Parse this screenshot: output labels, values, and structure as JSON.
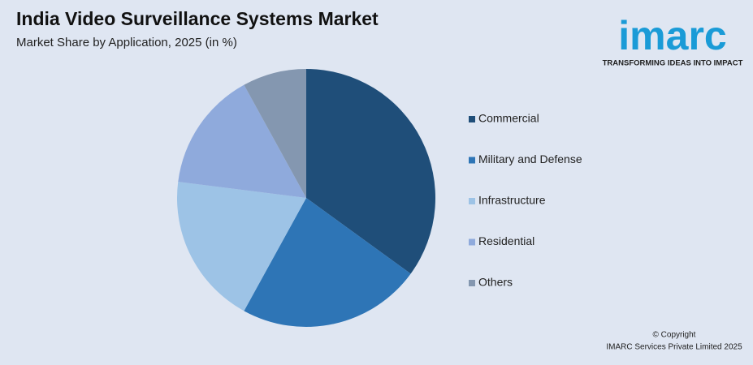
{
  "chart_data": {
    "type": "pie",
    "title": "India Video Surveillance Systems Market",
    "subtitle": "Market Share by Application, 2025 (in %)",
    "categories": [
      "Commercial",
      "Military and Defense",
      "Infrastructure",
      "Residential",
      "Others"
    ],
    "values": [
      35,
      23,
      19,
      15,
      8
    ],
    "colors": [
      "#1f4e79",
      "#2e75b6",
      "#9dc3e6",
      "#8faadc",
      "#8497b0"
    ],
    "legend": "right"
  },
  "logo": {
    "name": "imarc",
    "tagline": "TRANSFORMING IDEAS INTO IMPACT"
  },
  "footer": [
    "© Copyright",
    "IMARC Services Private Limited 2025"
  ]
}
